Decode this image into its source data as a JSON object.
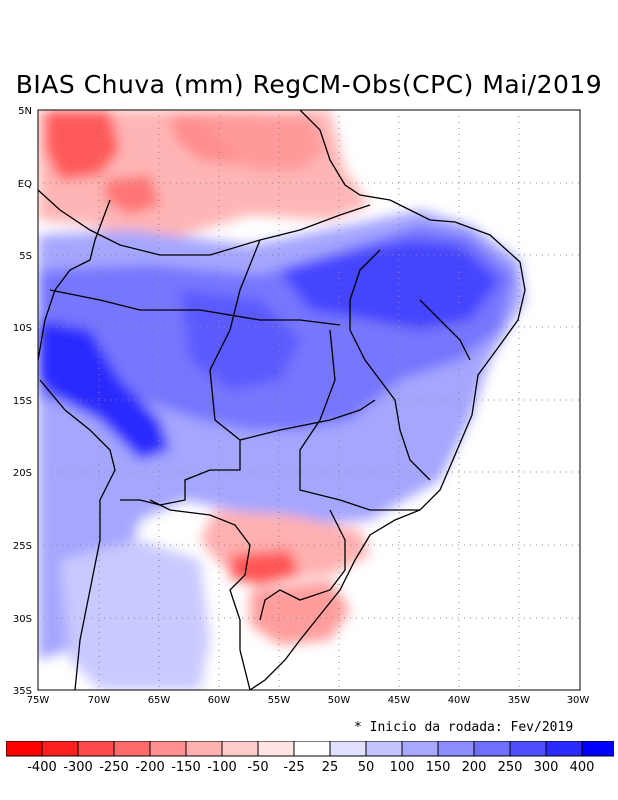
{
  "title": "BIAS Chuva (mm) RegCM-Obs(CPC) Mai/2019",
  "note": "* Inicio da rodada: Fev/2019",
  "x_ticks": [
    "75W",
    "70W",
    "65W",
    "60W",
    "55W",
    "50W",
    "45W",
    "40W",
    "35W",
    "30W"
  ],
  "y_ticks": [
    "5N",
    "EQ",
    "5S",
    "10S",
    "15S",
    "20S",
    "25S",
    "30S",
    "35S"
  ],
  "colorbar": {
    "colors": [
      "#ff0000",
      "#ff2020",
      "#ff4b4b",
      "#ff6b6b",
      "#ff8f8f",
      "#ffb0b0",
      "#ffcccc",
      "#ffe4e4",
      "#ffffff",
      "#e0e0ff",
      "#c4c4ff",
      "#a8a8ff",
      "#8c8cff",
      "#6f6fff",
      "#4f4fff",
      "#2b2bff",
      "#0000ff"
    ],
    "labels": [
      "-400",
      "-300",
      "-250",
      "-200",
      "-150",
      "-100",
      "-50",
      "-25",
      "25",
      "50",
      "100",
      "150",
      "200",
      "250",
      "300",
      "400"
    ]
  }
}
